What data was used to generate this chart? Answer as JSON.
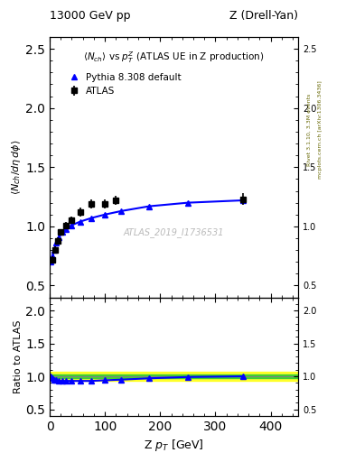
{
  "title_left": "13000 GeV pp",
  "title_right": "Z (Drell-Yan)",
  "plot_title": "<N_{ch}> vs p^{Z}_{T} (ATLAS UE in Z production)",
  "ylabel_main": "<N_{ch}/dη dϕ>",
  "ylabel_ratio": "Ratio to ATLAS",
  "xlabel": "Z p_{T} [GeV]",
  "watermark": "ATLAS_2019_I1736531",
  "right_label": "mcplots.cern.ch [arXiv:1306.3436]",
  "rivet_label": "Rivet 3.1.10, 3.3M events",
  "atlas_x": [
    5,
    10,
    15,
    20,
    30,
    40,
    55,
    75,
    100,
    120,
    350
  ],
  "atlas_y": [
    0.72,
    0.8,
    0.88,
    0.95,
    1.01,
    1.05,
    1.12,
    1.19,
    1.19,
    1.22,
    1.23
  ],
  "atlas_yerr": [
    0.03,
    0.03,
    0.03,
    0.03,
    0.03,
    0.03,
    0.04,
    0.04,
    0.04,
    0.04,
    0.05
  ],
  "pythia_x": [
    2,
    5,
    8,
    12,
    17,
    23,
    30,
    40,
    55,
    75,
    100,
    130,
    180,
    250,
    350
  ],
  "pythia_y": [
    0.7,
    0.75,
    0.8,
    0.86,
    0.91,
    0.95,
    0.98,
    1.01,
    1.04,
    1.07,
    1.1,
    1.13,
    1.17,
    1.2,
    1.22
  ],
  "ratio_pythia_x": [
    2,
    5,
    8,
    12,
    17,
    23,
    30,
    40,
    55,
    75,
    100,
    130,
    180,
    250,
    350
  ],
  "ratio_pythia_y": [
    1.0,
    0.97,
    0.95,
    0.94,
    0.93,
    0.93,
    0.93,
    0.93,
    0.93,
    0.93,
    0.94,
    0.95,
    0.97,
    0.99,
    1.0
  ],
  "band_yellow_xlo": 0,
  "band_yellow_xhi": 500,
  "band_yellow_ylow": 0.93,
  "band_yellow_yhigh": 1.07,
  "band_green_xlo": 0,
  "band_green_xhi": 500,
  "band_green_ylow": 0.97,
  "band_green_yhigh": 1.03,
  "xlim": [
    0,
    450
  ],
  "ylim_main": [
    0.4,
    2.6
  ],
  "ylim_ratio": [
    0.4,
    2.2
  ],
  "yticks_main": [
    0.5,
    1.0,
    1.5,
    2.0,
    2.5
  ],
  "yticks_ratio": [
    0.5,
    1.0,
    1.5,
    2.0
  ],
  "atlas_color": "black",
  "pythia_color": "blue",
  "marker_atlas": "s",
  "marker_pythia": "^"
}
